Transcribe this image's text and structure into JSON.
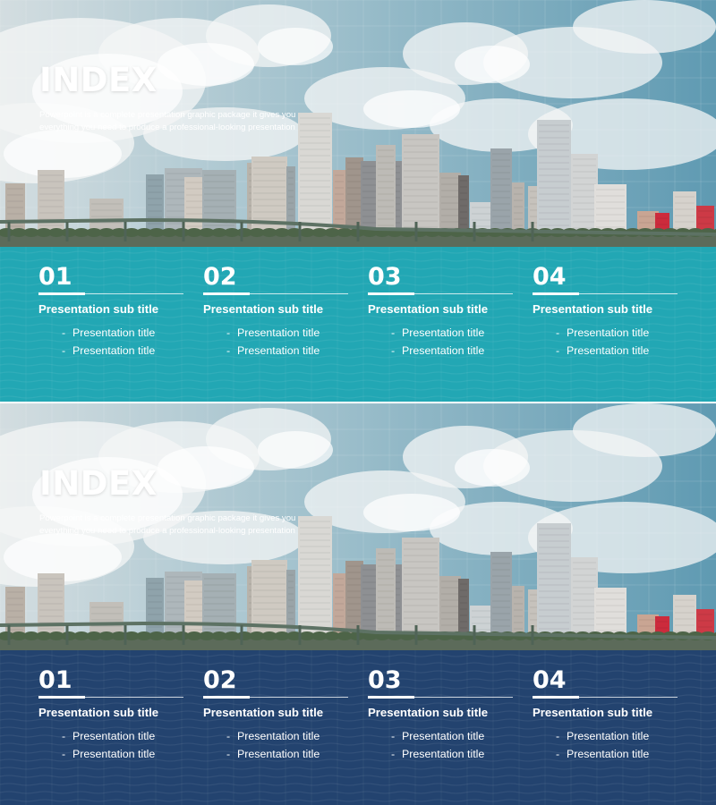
{
  "slides": [
    {
      "theme": "teal",
      "band_color": "#22a7b4",
      "title": "INDEX",
      "description": [
        "Powerpoint is a complete presentation graphic package it gives you",
        "everything you need to produce a professional-looking presentation"
      ],
      "columns": [
        {
          "number": "01",
          "subtitle": "Presentation sub title",
          "items": [
            "Presentation title",
            "Presentation title"
          ]
        },
        {
          "number": "02",
          "subtitle": "Presentation sub title",
          "items": [
            "Presentation title",
            "Presentation title"
          ]
        },
        {
          "number": "03",
          "subtitle": "Presentation sub title",
          "items": [
            "Presentation title",
            "Presentation title"
          ]
        },
        {
          "number": "04",
          "subtitle": "Presentation sub title",
          "items": [
            "Presentation title",
            "Presentation title"
          ]
        }
      ]
    },
    {
      "theme": "navy",
      "band_color": "#23436f",
      "title": "INDEX",
      "description": [
        "Powerpoint is a complete presentation graphic package it gives you",
        "everything you need to produce a professional-looking presentation"
      ],
      "columns": [
        {
          "number": "01",
          "subtitle": "Presentation sub title",
          "items": [
            "Presentation title",
            "Presentation title"
          ]
        },
        {
          "number": "02",
          "subtitle": "Presentation sub title",
          "items": [
            "Presentation title",
            "Presentation title"
          ]
        },
        {
          "number": "03",
          "subtitle": "Presentation sub title",
          "items": [
            "Presentation title",
            "Presentation title"
          ]
        },
        {
          "number": "04",
          "subtitle": "Presentation sub title",
          "items": [
            "Presentation title",
            "Presentation title"
          ]
        }
      ]
    }
  ],
  "item_bullet": "-"
}
